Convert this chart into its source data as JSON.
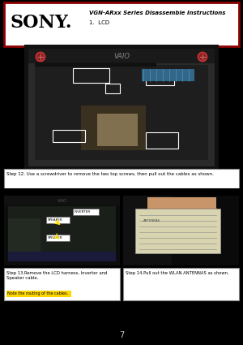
{
  "title_text": "VGN-ARxx Series Disassemble Instructions",
  "subtitle_text": "1.  LCD",
  "sony_logo": "SONY.",
  "header_border_color": "#8B0000",
  "header_bg": "#ffffff",
  "step12_text": "Step 12. Use a screwdriver to remove the two top screws, then pull out the cables as shown.",
  "step13_text": "Step 13.Remove the LCD harness, Inverter and\nSpeaker cable.",
  "step13_note": "Note the routing of the cables.",
  "step14_text": "Step 14.Pull out the WLAN ANTENNAS as shown.",
  "note_color": "#FFD700",
  "page_bg": "#000000",
  "white": "#ffffff",
  "black": "#000000",
  "label_bg": "#ffffff",
  "laptop_dark": "#1a1a1a",
  "laptop_mid": "#2d2d2d",
  "laptop_body": "#333333",
  "vaio_color": "#aaaaaa",
  "screw_color": "#cc3333",
  "arrow_color": "#ffdd00",
  "finger_color": "#c8956a",
  "card_color": "#d8d4b0",
  "step_box_border": "#aaaaaa"
}
